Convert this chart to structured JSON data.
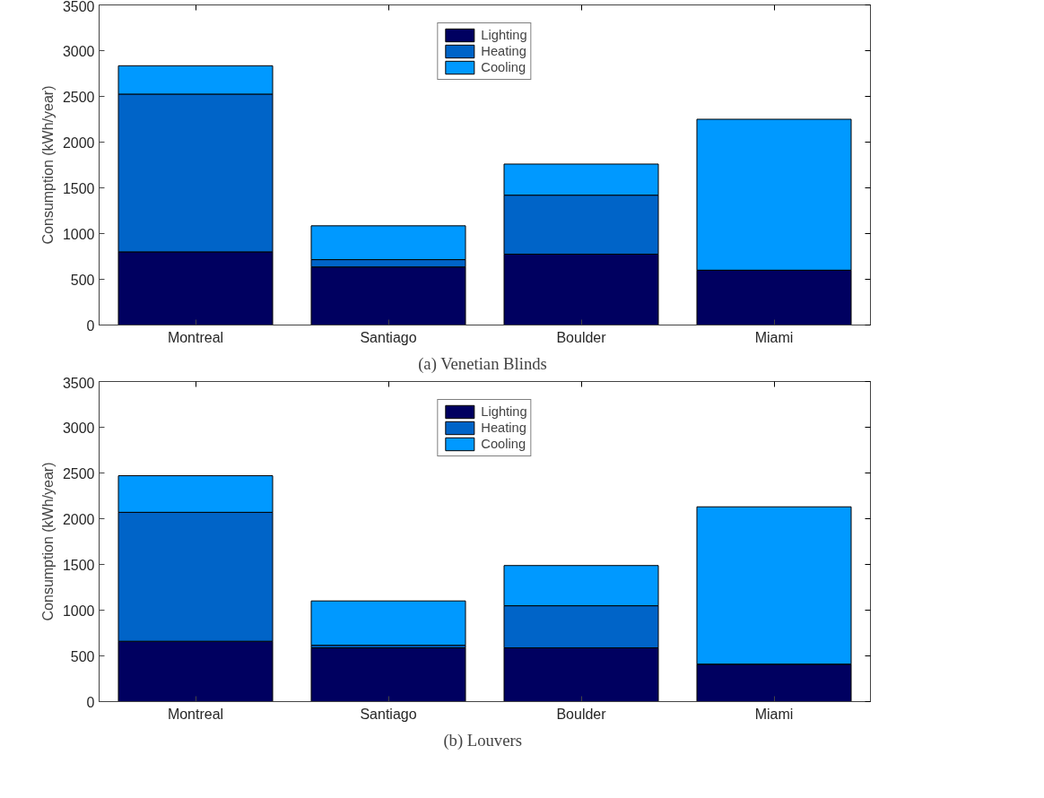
{
  "chart_data": [
    {
      "type": "bar",
      "stacked": true,
      "title": "(a)  Venetian Blinds",
      "ylabel": "Consumption (kWh/year)",
      "categories": [
        "Montreal",
        "Santiago",
        "Boulder",
        "Miami"
      ],
      "ylim": [
        0,
        3500
      ],
      "yticks": [
        0,
        500,
        1000,
        1500,
        2000,
        2500,
        3000,
        3500
      ],
      "grid": false,
      "legend": "top",
      "series": [
        {
          "name": "Lighting",
          "color": "#000060",
          "values": [
            800,
            635,
            775,
            600
          ]
        },
        {
          "name": "Heating",
          "color": "#0064c8",
          "values": [
            1725,
            80,
            645,
            0
          ]
        },
        {
          "name": "Cooling",
          "color": "#0099ff",
          "values": [
            310,
            370,
            340,
            1650
          ]
        }
      ]
    },
    {
      "type": "bar",
      "stacked": true,
      "title": "(b)  Louvers",
      "ylabel": "Consumption (kWh/year)",
      "categories": [
        "Montreal",
        "Santiago",
        "Boulder",
        "Miami"
      ],
      "ylim": [
        0,
        3500
      ],
      "yticks": [
        0,
        500,
        1000,
        1500,
        2000,
        2500,
        3000,
        3500
      ],
      "grid": false,
      "legend": "top",
      "series": [
        {
          "name": "Lighting",
          "color": "#000060",
          "values": [
            660,
            588,
            588,
            410
          ]
        },
        {
          "name": "Heating",
          "color": "#0064c8",
          "values": [
            1410,
            28,
            460,
            0
          ]
        },
        {
          "name": "Cooling",
          "color": "#0099ff",
          "values": [
            400,
            485,
            440,
            1720
          ]
        }
      ]
    }
  ]
}
